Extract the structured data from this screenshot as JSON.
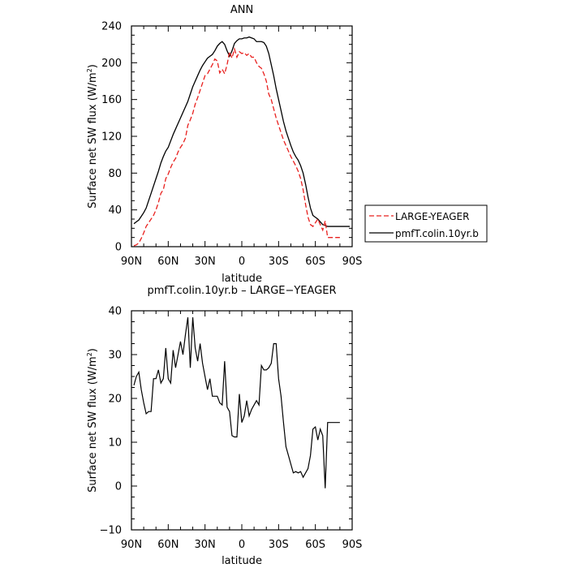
{
  "chart_data": [
    {
      "type": "line",
      "title": "ANN",
      "xlabel": "latitude",
      "ylabel": "Surface net SW flux (W/m2)",
      "ylabel_main": "Surface net SW flux (W/m",
      "ylabel_sup": "2",
      "ylabel_tail": ")",
      "xlim": [
        90,
        -90
      ],
      "ylim": [
        0,
        240
      ],
      "xticks": [
        90,
        60,
        30,
        0,
        -30,
        -60,
        -90
      ],
      "xtick_labels": [
        "90N",
        "60N",
        "30N",
        "0",
        "30S",
        "60S",
        "90S"
      ],
      "yticks": [
        0,
        40,
        80,
        120,
        160,
        200,
        240
      ],
      "ytick_labels": [
        "0",
        "40",
        "80",
        "120",
        "160",
        "200",
        "240"
      ],
      "legend_position": "right",
      "series": [
        {
          "name": "LARGE-YEAGER",
          "color": "#e8201e",
          "dash": "dashed",
          "x": [
            88,
            86,
            84,
            82,
            80,
            78,
            76,
            74,
            72,
            70,
            68,
            66,
            64,
            62,
            60,
            58,
            56,
            54,
            52,
            50,
            48,
            46,
            44,
            42,
            40,
            38,
            36,
            34,
            32,
            30,
            28,
            26,
            24,
            22,
            20,
            18,
            16,
            14,
            12,
            10,
            8,
            6,
            4,
            2,
            0,
            -2,
            -4,
            -6,
            -8,
            -10,
            -12,
            -14,
            -16,
            -18,
            -20,
            -22,
            -24,
            -26,
            -28,
            -30,
            -32,
            -34,
            -36,
            -38,
            -40,
            -42,
            -44,
            -46,
            -48,
            -50,
            -52,
            -54,
            -56,
            -58,
            -60,
            -62,
            -64,
            -66,
            -68,
            -70,
            -72,
            -74,
            -76,
            -78,
            -80
          ],
          "y": [
            1,
            2,
            4,
            9,
            15,
            22,
            26,
            30,
            34,
            40,
            48,
            58,
            62,
            74,
            79,
            86,
            92,
            96,
            103,
            108,
            112,
            118,
            132,
            138,
            145,
            155,
            162,
            170,
            178,
            186,
            188,
            193,
            198,
            204,
            202,
            189,
            193,
            188,
            198,
            212,
            205,
            215,
            206,
            212,
            210,
            211,
            208,
            210,
            206,
            206,
            200,
            196,
            194,
            188,
            180,
            166,
            160,
            150,
            140,
            132,
            124,
            116,
            110,
            104,
            98,
            93,
            88,
            82,
            74,
            62,
            46,
            32,
            24,
            22,
            26,
            30,
            24,
            18,
            28,
            10,
            10,
            10,
            10,
            10,
            10
          ]
        },
        {
          "name": "pmfT.colin.10yr.b",
          "color": "#000000",
          "dash": "solid",
          "x": [
            88,
            86,
            84,
            82,
            80,
            78,
            76,
            74,
            72,
            70,
            68,
            66,
            64,
            62,
            60,
            58,
            56,
            54,
            52,
            50,
            48,
            46,
            44,
            42,
            40,
            38,
            36,
            34,
            32,
            30,
            28,
            26,
            24,
            22,
            20,
            18,
            16,
            14,
            12,
            10,
            8,
            6,
            4,
            2,
            0,
            -2,
            -4,
            -6,
            -8,
            -10,
            -12,
            -14,
            -16,
            -18,
            -20,
            -22,
            -24,
            -26,
            -28,
            -30,
            -32,
            -34,
            -36,
            -38,
            -40,
            -42,
            -44,
            -46,
            -48,
            -50,
            -52,
            -54,
            -56,
            -58,
            -60,
            -62,
            -64,
            -66,
            -68,
            -70,
            -72,
            -74,
            -76,
            -78,
            -80,
            -82,
            -84,
            -86,
            -88
          ],
          "y": [
            25,
            27,
            29,
            33,
            37,
            42,
            50,
            58,
            66,
            74,
            82,
            91,
            98,
            104,
            108,
            115,
            122,
            128,
            134,
            140,
            146,
            152,
            158,
            166,
            174,
            180,
            186,
            192,
            197,
            201,
            205,
            207,
            209,
            213,
            218,
            221,
            223,
            220,
            213,
            207,
            213,
            221,
            224,
            226,
            226,
            227,
            227,
            228,
            227,
            226,
            223,
            223,
            223,
            222,
            218,
            210,
            198,
            186,
            172,
            160,
            148,
            136,
            126,
            118,
            110,
            103,
            98,
            94,
            88,
            80,
            68,
            54,
            42,
            34,
            32,
            30,
            27,
            24,
            23,
            22,
            22,
            22,
            22,
            22,
            22,
            22,
            22,
            22,
            22
          ]
        }
      ]
    },
    {
      "type": "line",
      "title": "pmfT.colin.10yr.b – LARGE−YEAGER",
      "xlabel": "latitude",
      "ylabel": "Surface net SW flux (W/m2)",
      "ylabel_main": "Surface net SW flux (W/m",
      "ylabel_sup": "2",
      "ylabel_tail": ")",
      "xlim": [
        90,
        -90
      ],
      "ylim": [
        -10,
        40
      ],
      "xticks": [
        90,
        60,
        30,
        0,
        -30,
        -60,
        -90
      ],
      "xtick_labels": [
        "90N",
        "60N",
        "30N",
        "0",
        "30S",
        "60S",
        "90S"
      ],
      "yticks": [
        -10,
        0,
        10,
        20,
        30,
        40
      ],
      "ytick_labels": [
        "−10",
        "0",
        "10",
        "20",
        "30",
        "40"
      ],
      "series": [
        {
          "color": "#000000",
          "dash": "solid",
          "x": [
            88,
            86,
            84,
            82,
            80,
            78,
            76,
            74,
            72,
            70,
            68,
            66,
            64,
            62,
            60,
            58,
            56,
            54,
            52,
            50,
            48,
            46,
            44,
            42,
            40,
            38,
            36,
            34,
            32,
            30,
            28,
            26,
            24,
            22,
            20,
            18,
            16,
            14,
            12,
            10,
            8,
            6,
            4,
            2,
            0,
            -2,
            -4,
            -6,
            -8,
            -10,
            -12,
            -14,
            -16,
            -18,
            -20,
            -22,
            -24,
            -26,
            -28,
            -30,
            -32,
            -34,
            -36,
            -38,
            -40,
            -42,
            -44,
            -46,
            -48,
            -50,
            -52,
            -54,
            -56,
            -58,
            -60,
            -62,
            -64,
            -66,
            -68,
            -70,
            -72,
            -74,
            -76,
            -78,
            -80
          ],
          "y": [
            23,
            25,
            26,
            22,
            19,
            16.5,
            17,
            17,
            24.5,
            24.5,
            26.5,
            23.5,
            24.5,
            31.5,
            24.5,
            23.5,
            31,
            27,
            30,
            33,
            30,
            34.5,
            38.5,
            27,
            38.5,
            31.5,
            28.5,
            32.5,
            28,
            25,
            22,
            24.5,
            20.5,
            20.5,
            20.5,
            19,
            18.5,
            28.5,
            18,
            17,
            11.5,
            11.2,
            11.2,
            21,
            14.5,
            16,
            19.5,
            16,
            17.5,
            18.5,
            19.5,
            18.5,
            27.5,
            26.5,
            26.5,
            27,
            28,
            32.5,
            32.5,
            24.5,
            20.5,
            14.5,
            9,
            7,
            5,
            3,
            3.3,
            3,
            3.3,
            2,
            3,
            4,
            7,
            13,
            13.5,
            10.5,
            13,
            11.5,
            -0.5,
            14.5,
            14.5,
            14.5,
            14.5,
            14.5,
            14.5
          ]
        }
      ]
    }
  ]
}
